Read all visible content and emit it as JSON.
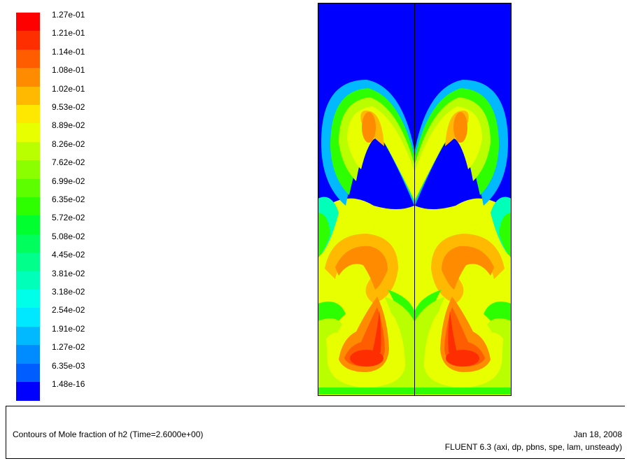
{
  "chart_data": {
    "type": "heatmap",
    "title": "Contours of Mole fraction of h2  (Time=2.6000e+00)",
    "colorbar": {
      "labels": [
        "1.27e-01",
        "1.21e-01",
        "1.14e-01",
        "1.08e-01",
        "1.02e-01",
        "9.53e-02",
        "8.89e-02",
        "8.26e-02",
        "7.62e-02",
        "6.99e-02",
        "6.35e-02",
        "5.72e-02",
        "5.08e-02",
        "4.45e-02",
        "3.81e-02",
        "3.18e-02",
        "2.54e-02",
        "1.91e-02",
        "1.27e-02",
        "6.35e-03",
        "1.48e-16"
      ],
      "colors": [
        "#ff0000",
        "#ff2e00",
        "#ff5d00",
        "#ff8b00",
        "#ffb900",
        "#ffe800",
        "#e8ff00",
        "#b9ff00",
        "#8bff00",
        "#5dff00",
        "#2eff00",
        "#00ff2e",
        "#00ff5d",
        "#00ff8b",
        "#00ffb9",
        "#00ffe8",
        "#00e8ff",
        "#00b9ff",
        "#008bff",
        "#005dff",
        "#0000ff"
      ],
      "min": 1.48e-16,
      "max": 0.127
    }
  },
  "footer": {
    "caption": "Contours of Mole fraction of h2  (Time=2.6000e+00)",
    "date": "Jan 18, 2008",
    "solver": "FLUENT 6.3 (axi, dp, pbns, spe, lam, unsteady)"
  }
}
